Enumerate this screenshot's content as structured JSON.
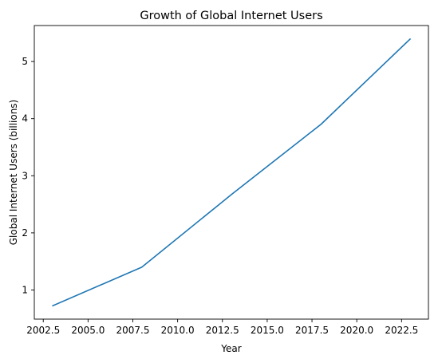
{
  "chart_data": {
    "type": "line",
    "title": "Growth of Global Internet Users",
    "xlabel": "Year",
    "ylabel": "Global Internet Users (billions)",
    "xlim": [
      2002.0,
      2024.0
    ],
    "ylim": [
      0.49,
      5.63
    ],
    "xticks": [
      2002.5,
      2005.0,
      2007.5,
      2010.0,
      2012.5,
      2015.0,
      2017.5,
      2020.0,
      2022.5
    ],
    "xtick_labels": [
      "2002.5",
      "2005.0",
      "2007.5",
      "2010.0",
      "2012.5",
      "2015.0",
      "2017.5",
      "2020.0",
      "2022.5"
    ],
    "yticks": [
      1,
      2,
      3,
      4,
      5
    ],
    "ytick_labels": [
      "1",
      "2",
      "3",
      "4",
      "5"
    ],
    "grid": false,
    "series": [
      {
        "color": "#1f77b4",
        "x": [
          2003,
          2008,
          2013,
          2018,
          2023
        ],
        "y": [
          0.72,
          1.4,
          2.67,
          3.9,
          5.4
        ]
      }
    ]
  }
}
